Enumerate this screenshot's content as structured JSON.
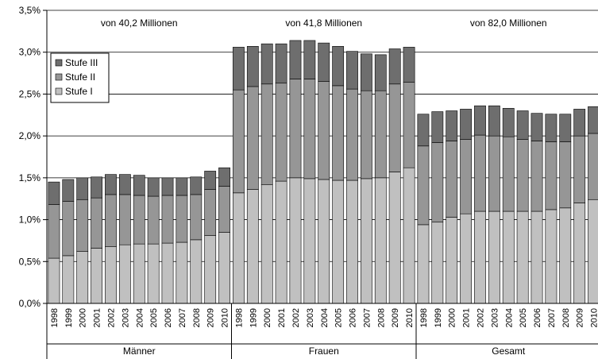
{
  "chart_data": {
    "type": "bar",
    "stacked": true,
    "ylim": [
      0,
      3.5
    ],
    "yticks": [
      "0,0%",
      "0,5%",
      "1,0%",
      "1,5%",
      "2,0%",
      "2,5%",
      "3,0%",
      "3,5%"
    ],
    "years": [
      "1998",
      "1999",
      "2000",
      "2001",
      "2002",
      "2003",
      "2004",
      "2005",
      "2006",
      "2007",
      "2008",
      "2009",
      "2010"
    ],
    "groups": [
      {
        "label": "Männer",
        "annotation": "von 40,2 Millionen",
        "stufe1": [
          0.54,
          0.57,
          0.62,
          0.66,
          0.68,
          0.7,
          0.71,
          0.71,
          0.72,
          0.73,
          0.76,
          0.81,
          0.85
        ],
        "stufe2": [
          0.64,
          0.65,
          0.62,
          0.6,
          0.62,
          0.6,
          0.58,
          0.57,
          0.57,
          0.56,
          0.54,
          0.55,
          0.55
        ],
        "stufe3": [
          0.27,
          0.26,
          0.26,
          0.25,
          0.24,
          0.24,
          0.24,
          0.22,
          0.21,
          0.21,
          0.21,
          0.22,
          0.22
        ]
      },
      {
        "label": "Frauen",
        "annotation": "von 41,8 Millionen",
        "stufe1": [
          1.32,
          1.36,
          1.42,
          1.46,
          1.5,
          1.49,
          1.48,
          1.47,
          1.47,
          1.49,
          1.5,
          1.57,
          1.62
        ],
        "stufe2": [
          1.23,
          1.23,
          1.2,
          1.17,
          1.18,
          1.19,
          1.17,
          1.13,
          1.09,
          1.05,
          1.04,
          1.05,
          1.02
        ],
        "stufe3": [
          0.51,
          0.48,
          0.48,
          0.47,
          0.46,
          0.46,
          0.46,
          0.47,
          0.45,
          0.44,
          0.43,
          0.42,
          0.42
        ]
      },
      {
        "label": "Gesamt",
        "annotation": "von 82,0 Millionen",
        "stufe1": [
          0.94,
          0.97,
          1.03,
          1.07,
          1.1,
          1.1,
          1.1,
          1.1,
          1.1,
          1.12,
          1.14,
          1.2,
          1.24
        ],
        "stufe2": [
          0.94,
          0.95,
          0.91,
          0.89,
          0.91,
          0.9,
          0.89,
          0.86,
          0.84,
          0.81,
          0.79,
          0.8,
          0.79
        ],
        "stufe3": [
          0.38,
          0.37,
          0.36,
          0.36,
          0.35,
          0.36,
          0.34,
          0.34,
          0.33,
          0.33,
          0.33,
          0.32,
          0.32
        ]
      }
    ],
    "legend": [
      {
        "key": "stufe3",
        "label": "Stufe III",
        "color": "#6e6e6e"
      },
      {
        "key": "stufe2",
        "label": "Stufe II",
        "color": "#969696"
      },
      {
        "key": "stufe1",
        "label": "Stufe I",
        "color": "#c0c0c0"
      }
    ],
    "grid": true,
    "legend_position": "top-left"
  }
}
